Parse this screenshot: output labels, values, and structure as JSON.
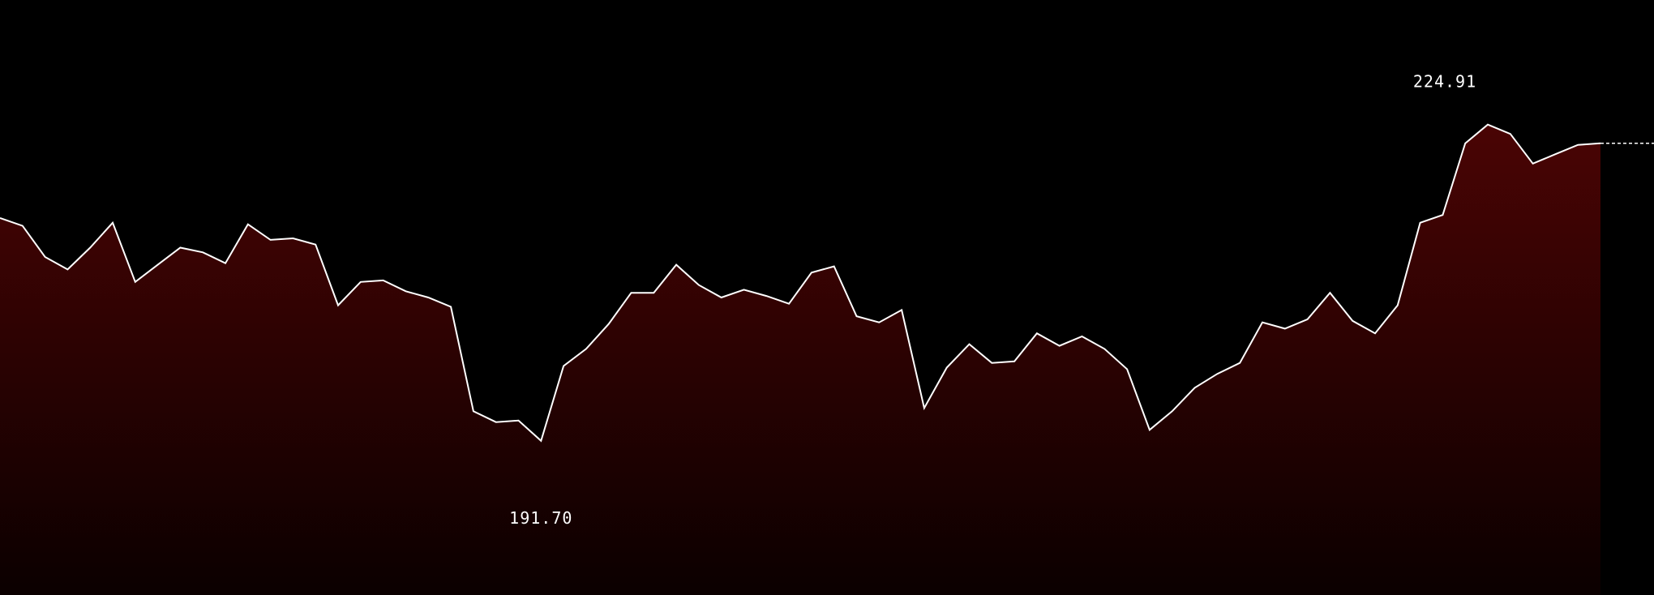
{
  "chart_data": {
    "type": "area",
    "values": [
      214.2,
      213.7,
      211.7,
      210.9,
      212.3,
      213.9,
      210.1,
      211.2,
      212.3,
      212.0,
      211.3,
      213.8,
      212.8,
      212.9,
      212.5,
      208.6,
      210.1,
      210.2,
      209.5,
      209.1,
      208.5,
      201.8,
      201.1,
      201.2,
      199.9,
      204.7,
      205.8,
      207.4,
      209.4,
      209.4,
      211.2,
      209.9,
      209.1,
      209.6,
      209.2,
      208.7,
      210.7,
      211.1,
      207.9,
      207.5,
      208.3,
      202.0,
      204.6,
      206.1,
      204.9,
      205.0,
      206.8,
      206.0,
      206.6,
      205.8,
      204.5,
      200.6,
      201.8,
      203.3,
      204.2,
      204.9,
      207.5,
      207.1,
      207.7,
      209.4,
      207.6,
      206.8,
      208.6,
      213.9,
      214.4,
      219.0,
      220.2,
      219.6,
      217.7,
      218.3,
      218.9,
      219.0
    ],
    "ylim": [
      190.0,
      228.2
    ],
    "accent_color": "#ffffff",
    "fill_top_color": "#4a0404",
    "fill_bottom_color": "#0b0000",
    "grid": false,
    "legend": "none",
    "annotations": {
      "max_label": "224.91",
      "min_label": "191.70"
    }
  }
}
